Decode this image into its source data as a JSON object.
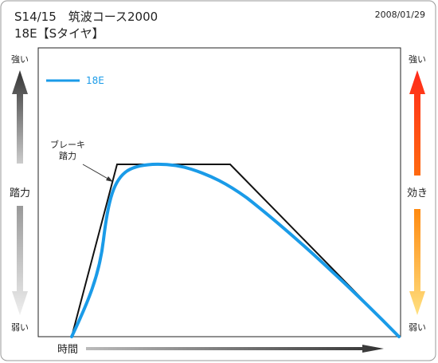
{
  "header": {
    "title": "S14/15　筑波コース2000",
    "subtitle": "18E【Sタイヤ】",
    "date": "2008/01/29"
  },
  "left_axis": {
    "top": "強い",
    "label": "踏力",
    "bottom": "弱い"
  },
  "right_axis": {
    "top": "強い",
    "label": "効き",
    "bottom": "弱い"
  },
  "x_axis_label": "時間",
  "legend": {
    "name": "18E"
  },
  "annotation": [
    "ブレーキ",
    "踏力"
  ]
}
